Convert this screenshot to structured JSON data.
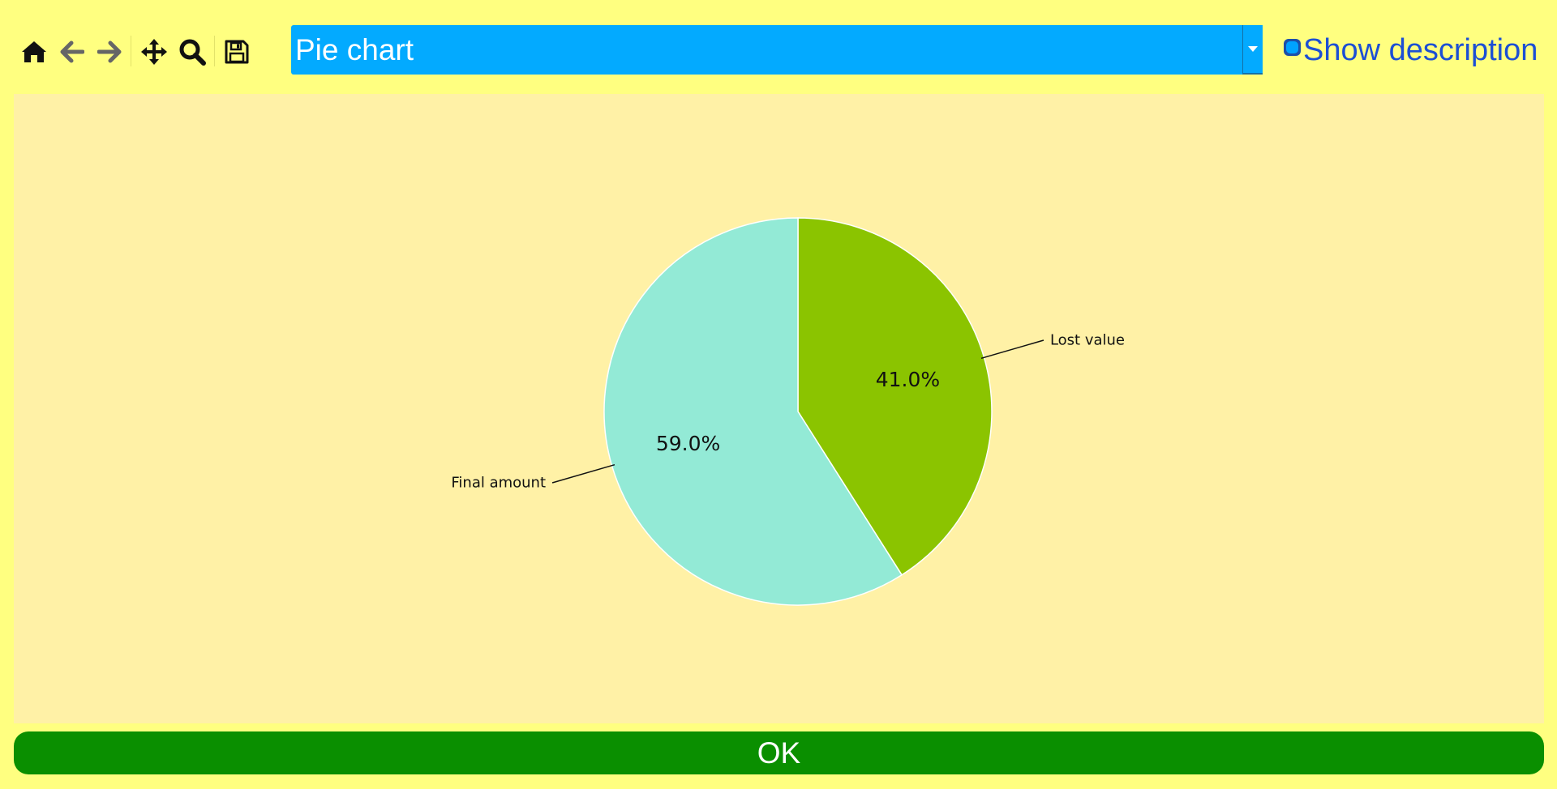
{
  "toolbar": {
    "icons": [
      "home-icon",
      "back-arrow-icon",
      "forward-arrow-icon",
      "move-icon",
      "zoom-icon",
      "save-icon"
    ]
  },
  "selector": {
    "value": "Pie chart"
  },
  "description_toggle": {
    "label": "Show description",
    "checked": false
  },
  "chart_data": {
    "type": "pie",
    "categories": [
      "Lost value",
      "Final amount"
    ],
    "values": [
      41.0,
      59.0
    ],
    "value_labels": [
      "41.0%",
      "59.0%"
    ],
    "colors": [
      "#8bc400",
      "#93ead6"
    ],
    "title": ""
  },
  "footer": {
    "ok_label": "OK"
  },
  "colors": {
    "background": "#ffff80",
    "chart_background": "#fff1a6",
    "select_accent": "#03aaff",
    "ok_button": "#0a8f00",
    "link_text": "#1c4fd4"
  }
}
